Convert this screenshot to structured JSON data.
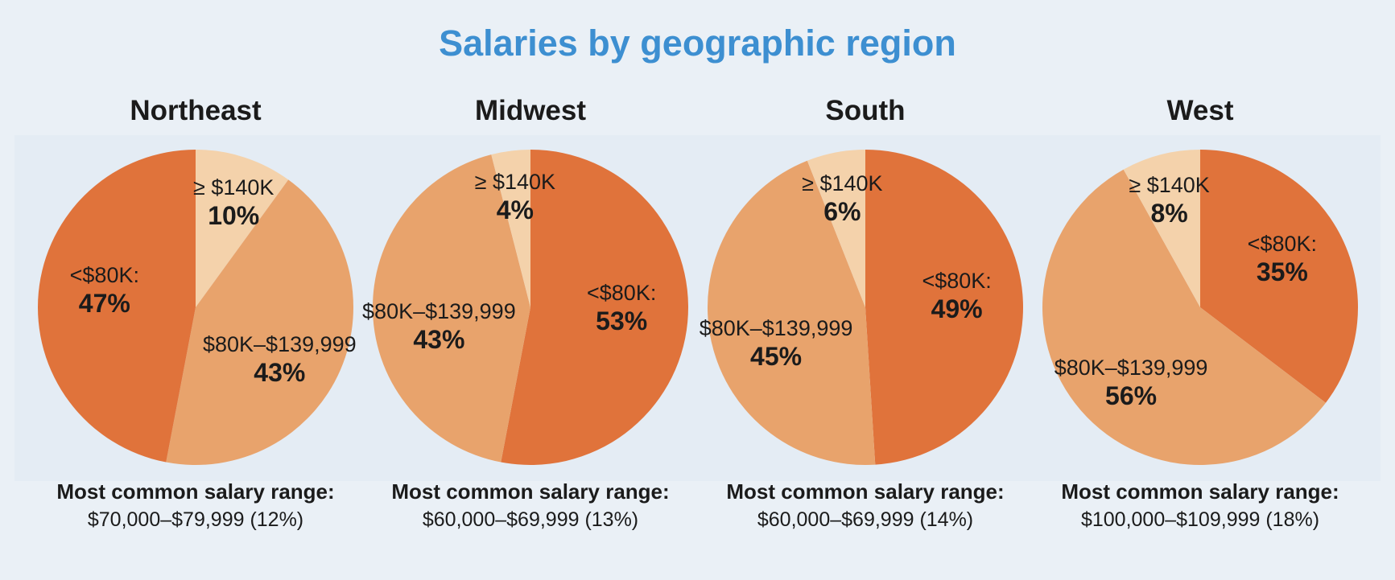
{
  "chart_data": {
    "type": "pie",
    "title": "Salaries by geographic region",
    "colors": {
      "lt80k": "#e0733b",
      "mid": "#e8a36c",
      "ge140k": "#f4d2ab"
    },
    "charts": [
      {
        "region": "Northeast",
        "slices": [
          {
            "key": "ge140k",
            "category": "≥ $140K",
            "value": 10,
            "label": "10%"
          },
          {
            "key": "mid",
            "category": "$80K–$139,999",
            "value": 43,
            "label": "43%"
          },
          {
            "key": "lt80k",
            "category": "<$80K:",
            "value": 47,
            "label": "47%"
          }
        ],
        "common_heading": "Most common salary range:",
        "common_range": "$70,000–$79,999 (12%)"
      },
      {
        "region": "Midwest",
        "slices": [
          {
            "key": "lt80k",
            "category": "<$80K:",
            "value": 53,
            "label": "53%"
          },
          {
            "key": "mid",
            "category": "$80K–$139,999",
            "value": 43,
            "label": "43%"
          },
          {
            "key": "ge140k",
            "category": "≥ $140K",
            "value": 4,
            "label": "4%"
          }
        ],
        "common_heading": "Most common salary range:",
        "common_range": "$60,000–$69,999 (13%)"
      },
      {
        "region": "South",
        "slices": [
          {
            "key": "lt80k",
            "category": "<$80K:",
            "value": 49,
            "label": "49%"
          },
          {
            "key": "mid",
            "category": "$80K–$139,999",
            "value": 45,
            "label": "45%"
          },
          {
            "key": "ge140k",
            "category": "≥ $140K",
            "value": 6,
            "label": "6%"
          }
        ],
        "common_heading": "Most common salary range:",
        "common_range": "$60,000–$69,999 (14%)"
      },
      {
        "region": "West",
        "slices": [
          {
            "key": "lt80k",
            "category": "<$80K:",
            "value": 35,
            "label": "35%"
          },
          {
            "key": "mid",
            "category": "$80K–$139,999",
            "value": 56,
            "label": "56%"
          },
          {
            "key": "ge140k",
            "category": "≥ $140K",
            "value": 8,
            "label": "8%"
          }
        ],
        "common_heading": "Most common salary range:",
        "common_range": "$100,000–$109,999 (18%)"
      }
    ]
  }
}
